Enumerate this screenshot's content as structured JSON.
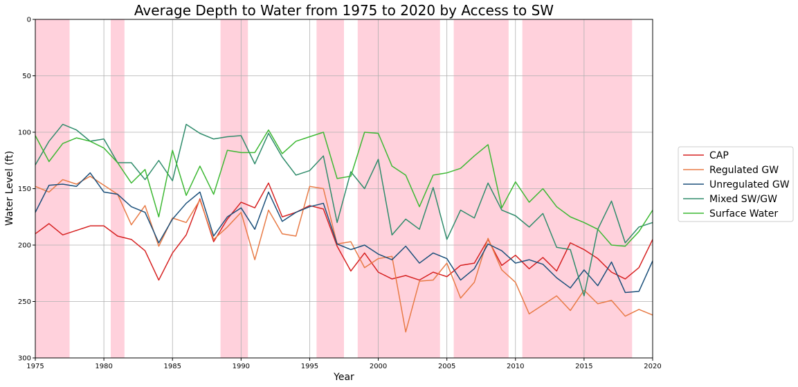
{
  "chart_data": {
    "type": "line",
    "title": "Average Depth to Water from 1975 to 2020 by Access to SW",
    "xlabel": "Year",
    "ylabel": "Water Level (ft)",
    "xlim": [
      1975,
      2020
    ],
    "ylim": [
      0,
      300
    ],
    "y_inverted": true,
    "grid": true,
    "legend_position": "outside-right",
    "x_ticks": [
      1975,
      1980,
      1985,
      1990,
      1995,
      2000,
      2005,
      2010,
      2015,
      2020
    ],
    "y_ticks": [
      0,
      50,
      100,
      150,
      200,
      250,
      300
    ],
    "shaded_periods": [
      [
        1975,
        1977.5
      ],
      [
        1980.5,
        1981.5
      ],
      [
        1988.5,
        1990.5
      ],
      [
        1995.5,
        1997.5
      ],
      [
        1998.5,
        2004.5
      ],
      [
        2005.5,
        2009.5
      ],
      [
        2010.5,
        2018.5
      ]
    ],
    "shade_color": "#ffd1dc",
    "x": [
      1975,
      1976,
      1977,
      1978,
      1979,
      1980,
      1981,
      1982,
      1983,
      1984,
      1985,
      1986,
      1987,
      1988,
      1989,
      1990,
      1991,
      1992,
      1993,
      1994,
      1995,
      1996,
      1997,
      1998,
      1999,
      2000,
      2001,
      2002,
      2003,
      2004,
      2005,
      2006,
      2007,
      2008,
      2009,
      2010,
      2011,
      2012,
      2013,
      2014,
      2015,
      2016,
      2017,
      2018,
      2019,
      2020
    ],
    "series": [
      {
        "name": "CAP",
        "color": "#d62020",
        "values": [
          190,
          181,
          191,
          187,
          183,
          183,
          192,
          195,
          205,
          231,
          207,
          191,
          159,
          197,
          177,
          162,
          167,
          145,
          175,
          171,
          165,
          168,
          201,
          223,
          207,
          224,
          230,
          227,
          231,
          224,
          228,
          218,
          216,
          195,
          218,
          209,
          221,
          211,
          223,
          198,
          204,
          212,
          224,
          230,
          220,
          195
        ]
      },
      {
        "name": "Regulated GW",
        "color": "#e87a45",
        "values": [
          148,
          153,
          142,
          146,
          139,
          147,
          155,
          182,
          165,
          201,
          176,
          180,
          160,
          195,
          184,
          171,
          213,
          169,
          190,
          192,
          148,
          150,
          199,
          197,
          220,
          212,
          210,
          277,
          232,
          231,
          216,
          247,
          233,
          194,
          222,
          233,
          261,
          253,
          245,
          258,
          240,
          252,
          249,
          263,
          257,
          262
        ]
      },
      {
        "name": "Unregulated GW",
        "color": "#1a4f7a",
        "values": [
          171,
          147,
          146,
          148,
          136,
          153,
          155,
          166,
          171,
          198,
          177,
          163,
          153,
          192,
          175,
          167,
          186,
          153,
          179,
          171,
          166,
          163,
          199,
          204,
          200,
          208,
          213,
          201,
          216,
          207,
          212,
          231,
          221,
          199,
          205,
          216,
          213,
          217,
          229,
          238,
          222,
          236,
          215,
          242,
          241,
          214
        ]
      },
      {
        "name": "Mixed SW/GW",
        "color": "#2e8b6a",
        "values": [
          129,
          108,
          93,
          98,
          108,
          106,
          127,
          127,
          142,
          125,
          143,
          93,
          101,
          106,
          104,
          103,
          128,
          101,
          122,
          138,
          134,
          121,
          180,
          135,
          150,
          124,
          191,
          177,
          186,
          149,
          195,
          169,
          176,
          145,
          169,
          174,
          184,
          172,
          202,
          204,
          245,
          186,
          161,
          198,
          184,
          180
        ]
      },
      {
        "name": "Surface Water",
        "color": "#3cb832",
        "values": [
          103,
          126,
          110,
          105,
          108,
          114,
          127,
          145,
          133,
          175,
          116,
          156,
          130,
          155,
          116,
          118,
          118,
          98,
          119,
          108,
          104,
          100,
          141,
          139,
          100,
          101,
          130,
          138,
          166,
          138,
          136,
          132,
          121,
          111,
          167,
          144,
          162,
          150,
          166,
          175,
          180,
          186,
          200,
          201,
          188,
          169
        ]
      }
    ]
  }
}
